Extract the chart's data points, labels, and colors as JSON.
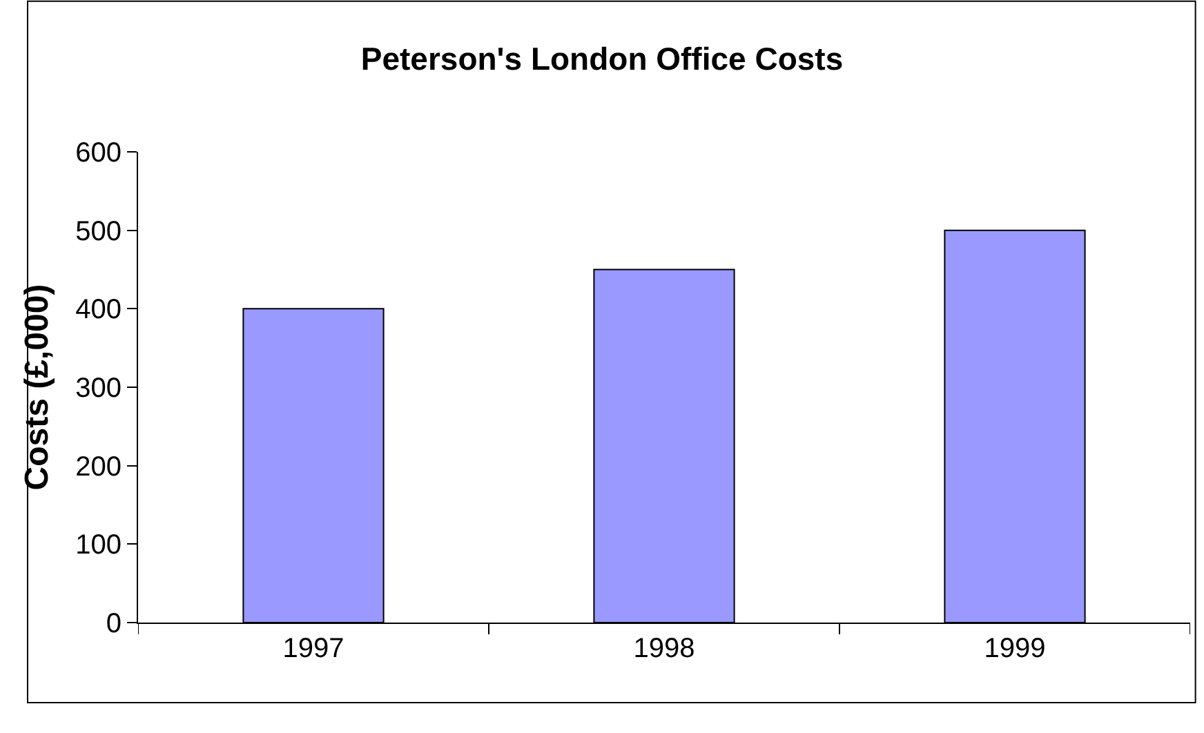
{
  "chart_data": {
    "type": "bar",
    "title": "Peterson's London Office Costs",
    "ylabel": "Costs (£,000)",
    "categories": [
      "1997",
      "1998",
      "1999"
    ],
    "values": [
      400,
      450,
      500
    ],
    "color": "#9999ff",
    "ylim": [
      0,
      600
    ],
    "yticks": [
      0,
      100,
      200,
      300,
      400,
      500,
      600
    ]
  }
}
